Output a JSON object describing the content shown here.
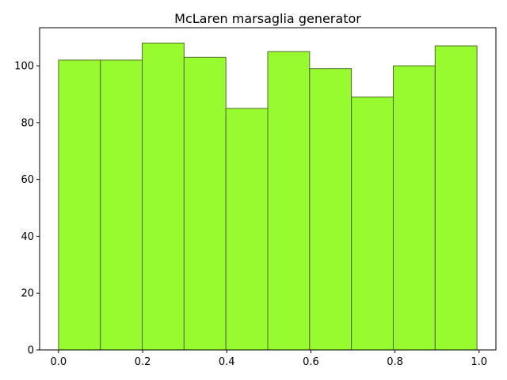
{
  "chart_data": {
    "type": "bar",
    "title": "McLaren marsaglia generator",
    "xlabel": "",
    "ylabel": "",
    "bin_edges": [
      0.0,
      0.0995,
      0.199,
      0.2985,
      0.398,
      0.4975,
      0.597,
      0.6965,
      0.796,
      0.8955,
      0.995
    ],
    "values": [
      102,
      102,
      108,
      103,
      85,
      105,
      99,
      89,
      100,
      107
    ],
    "xlim": [
      -0.045,
      1.04
    ],
    "ylim": [
      0,
      113.4
    ],
    "x_ticks": [
      0.0,
      0.2,
      0.4,
      0.6,
      0.8,
      1.0
    ],
    "x_tick_labels": [
      "0.0",
      "0.2",
      "0.4",
      "0.6",
      "0.8",
      "1.0"
    ],
    "y_ticks": [
      0,
      20,
      40,
      60,
      80,
      100
    ],
    "y_tick_labels": [
      "0",
      "20",
      "40",
      "60",
      "80",
      "100"
    ],
    "grid": false,
    "legend": "none",
    "colors": {
      "bar_fill": "#98fb2f",
      "bar_edge": "#556b2f"
    }
  }
}
